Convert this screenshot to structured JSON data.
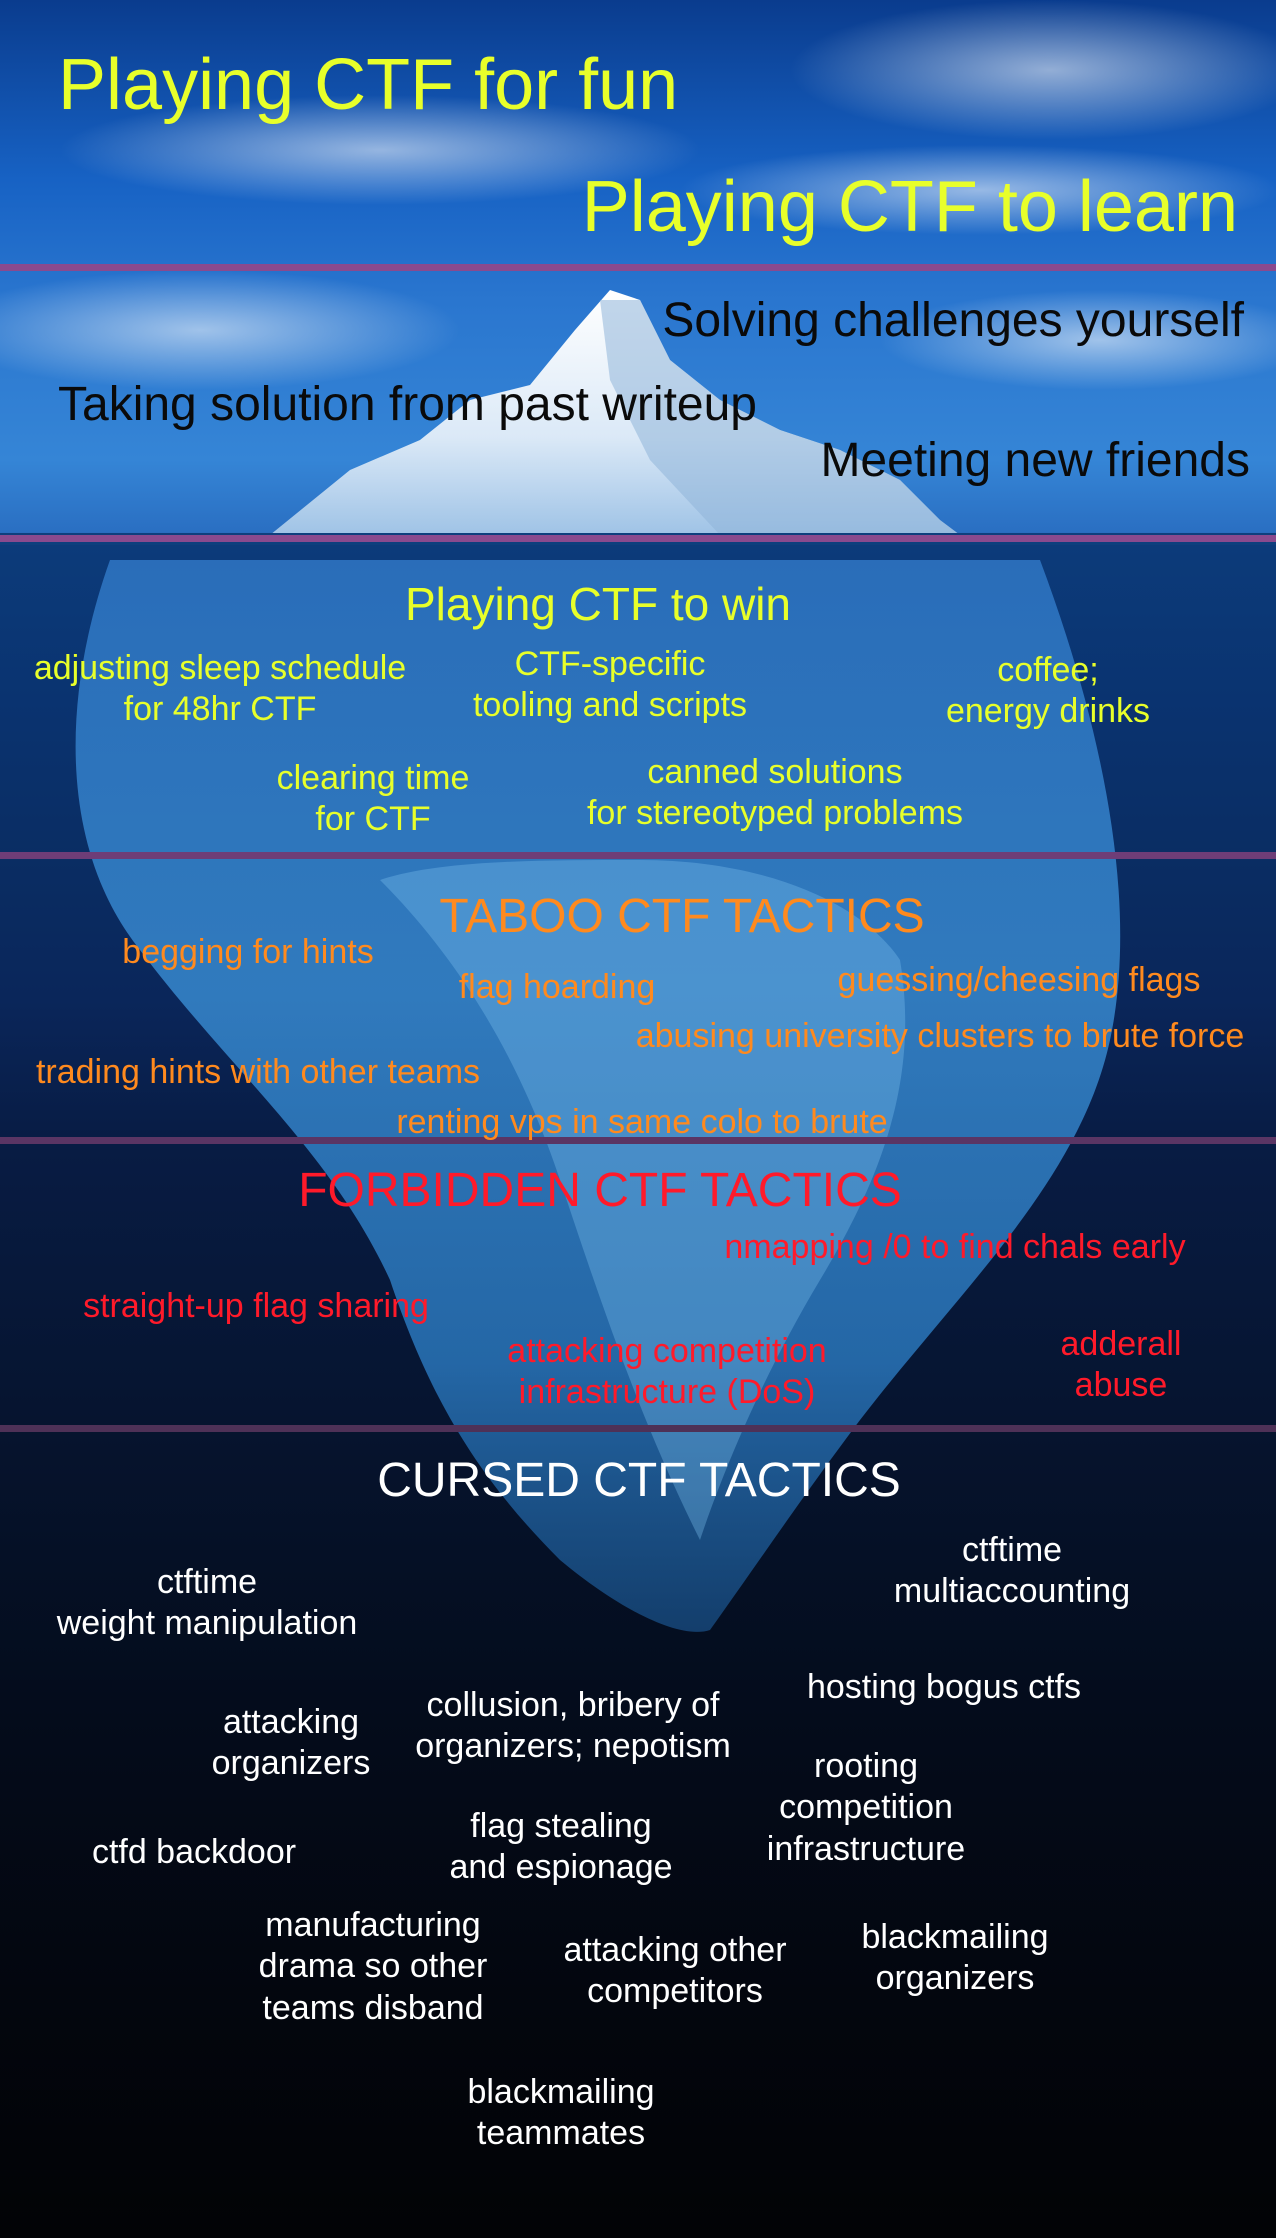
{
  "palette": {
    "divider": "#8a4a8e",
    "yellow": "#e8ff2a",
    "orange": "#ff8a1e",
    "red": "#ff1a2a",
    "white": "#ffffff",
    "black": "#0a0a0a"
  },
  "tier_surface": {
    "fun": "Playing CTF for fun",
    "learn": "Playing CTF to learn"
  },
  "tier_sky": {
    "solving": "Solving challenges yourself",
    "writeup": "Taking solution from past writeup",
    "friends": "Meeting new friends"
  },
  "tier_win": {
    "heading": "Playing CTF to win",
    "sleep": "adjusting sleep schedule\nfor 48hr CTF",
    "tooling": "CTF-specific\ntooling and scripts",
    "coffee": "coffee;\nenergy drinks",
    "clearing": "clearing time\nfor CTF",
    "canned": "canned solutions\nfor stereotyped problems"
  },
  "tier_taboo": {
    "heading": "TABOO CTF TACTICS",
    "begging": "begging for hints",
    "hoarding": "flag hoarding",
    "guessing": "guessing/cheesing flags",
    "clusters": "abusing university clusters to brute force",
    "trading": "trading hints with other teams",
    "vps": "renting vps in same colo to brute"
  },
  "tier_forbidden": {
    "heading": "FORBIDDEN CTF TACTICS",
    "nmap": "nmapping /0 to find chals early",
    "sharing": "straight-up flag sharing",
    "dos": "attacking competition\ninfrastructure (DoS)",
    "adderall": "adderall\nabuse"
  },
  "tier_cursed": {
    "heading": "CURSED CTF TACTICS",
    "multiaccount": "ctftime\nmultiaccounting",
    "weight": "ctftime\nweight manipulation",
    "bogus": "hosting bogus ctfs",
    "attack_org": "attacking\norganizers",
    "collusion": "collusion, bribery of\norganizers; nepotism",
    "rooting": "rooting\ncompetition\ninfrastructure",
    "backdoor": "ctfd backdoor",
    "stealing": "flag stealing\nand espionage",
    "drama": "manufacturing\ndrama so other\nteams disband",
    "attack_comp": "attacking other\ncompetitors",
    "blackmail_org": "blackmailing\norganizers",
    "blackmail_team": "blackmailing\nteammates"
  }
}
